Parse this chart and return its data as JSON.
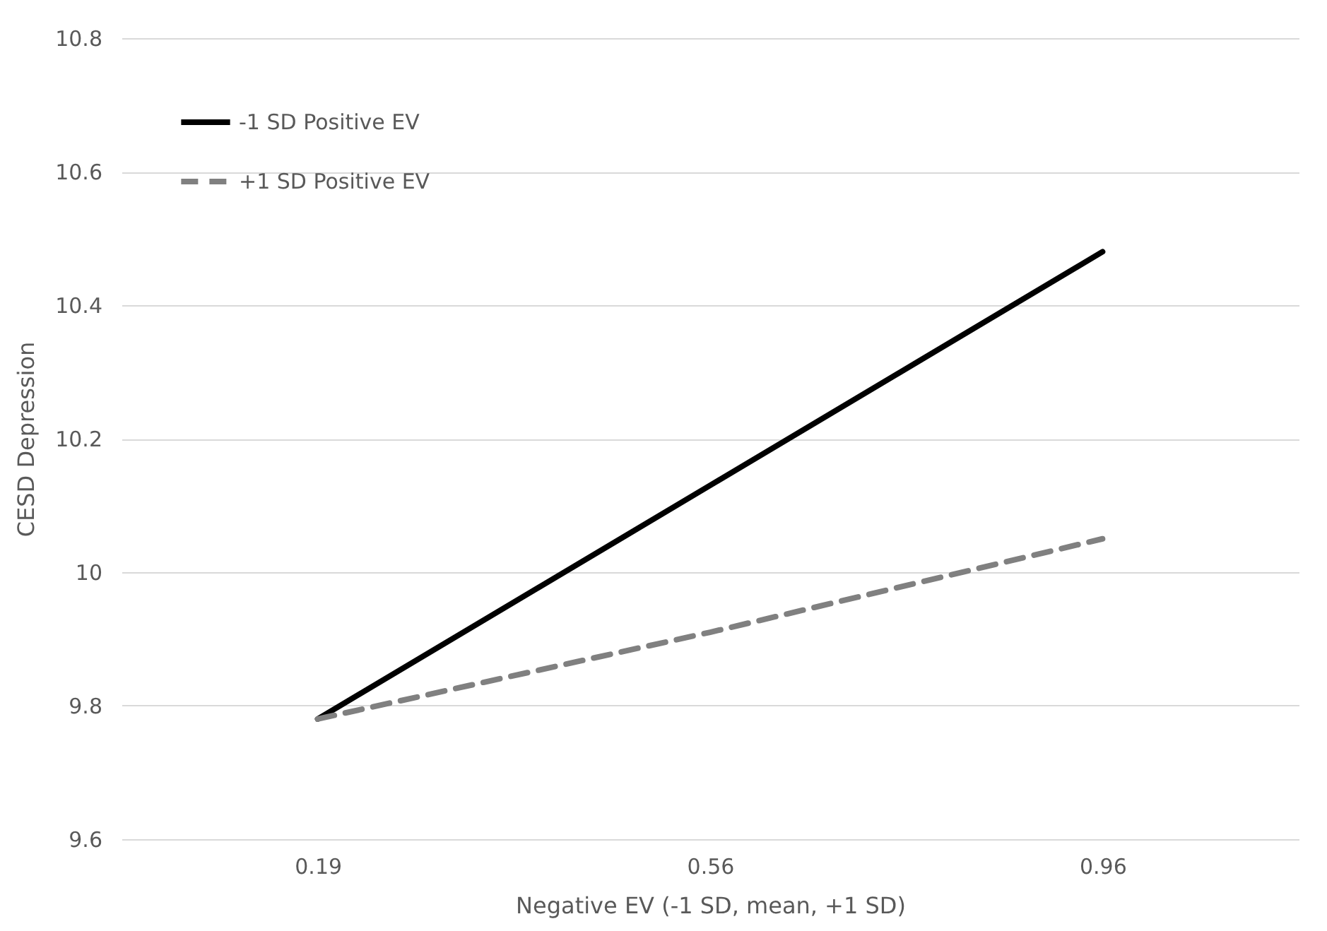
{
  "chart_data": {
    "type": "line",
    "xlabel": "Negative EV (-1 SD, mean, +1 SD)",
    "ylabel": "CESD Depression",
    "categories": [
      "0.19",
      "0.56",
      "0.96"
    ],
    "series": [
      {
        "name": "-1 SD Positive EV",
        "color": "#000000",
        "line_style": "solid",
        "values": [
          9.78,
          10.13,
          10.48
        ]
      },
      {
        "name": "+1 SD Positive EV",
        "color": "#808080",
        "line_style": "dashed",
        "values": [
          9.78,
          9.91,
          10.05
        ]
      }
    ],
    "ylim": [
      9.6,
      10.8
    ],
    "yticks": [
      9.6,
      9.8,
      10.0,
      10.2,
      10.4,
      10.6,
      10.8
    ],
    "grid": "y",
    "legend": "top left",
    "marker": "none"
  }
}
